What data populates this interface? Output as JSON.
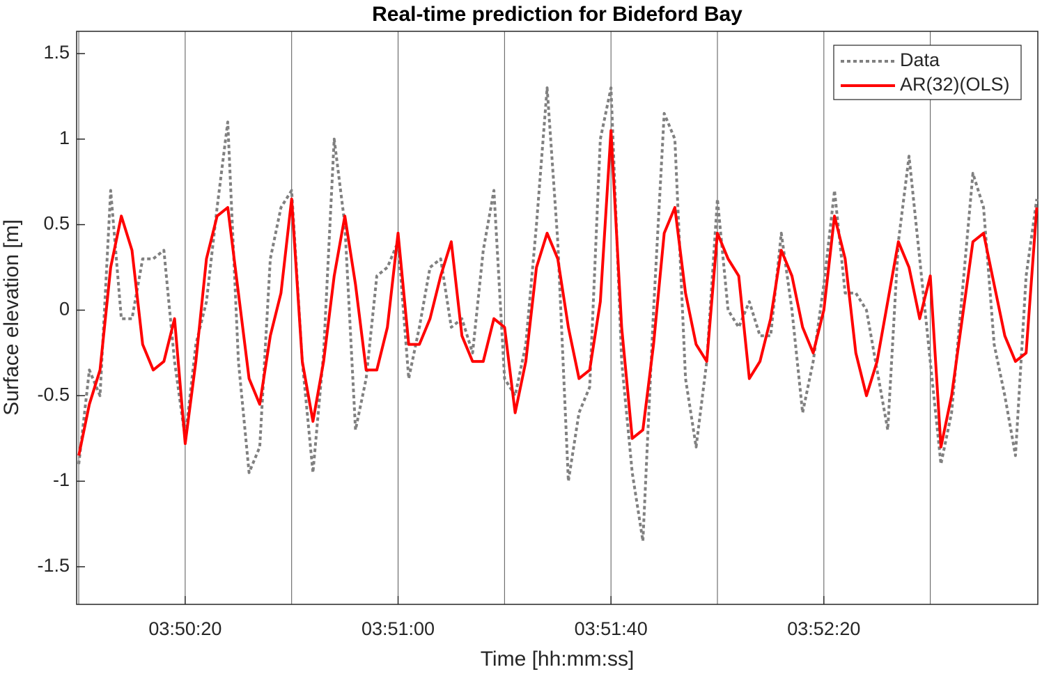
{
  "chart_data": {
    "type": "line",
    "title": "Real-time prediction for Bideford Bay",
    "x_label": "Time [hh:mm:ss]",
    "y_label": "Surface elevation [m]",
    "x": [
      13800,
      13802,
      13804,
      13806,
      13808,
      13810,
      13812,
      13814,
      13816,
      13818,
      13820,
      13822,
      13824,
      13826,
      13828,
      13830,
      13832,
      13834,
      13836,
      13838,
      13840,
      13842,
      13844,
      13846,
      13848,
      13850,
      13852,
      13854,
      13856,
      13858,
      13860,
      13862,
      13864,
      13866,
      13868,
      13870,
      13872,
      13874,
      13876,
      13878,
      13880,
      13882,
      13884,
      13886,
      13888,
      13890,
      13892,
      13894,
      13896,
      13898,
      13900,
      13902,
      13904,
      13906,
      13908,
      13910,
      13912,
      13914,
      13916,
      13918,
      13920,
      13922,
      13924,
      13926,
      13928,
      13930,
      13932,
      13934,
      13936,
      13938,
      13940,
      13942,
      13944,
      13946,
      13948,
      13950,
      13952,
      13954,
      13956,
      13958,
      13960,
      13962,
      13964,
      13966,
      13968,
      13970,
      13972,
      13974,
      13976,
      13978,
      13980
    ],
    "series": [
      {
        "name": "Data",
        "color": "#808080",
        "dashed": true,
        "values": [
          -0.9,
          -0.35,
          -0.5,
          0.7,
          -0.05,
          -0.05,
          0.3,
          0.3,
          0.35,
          -0.3,
          -0.75,
          -0.2,
          0.05,
          0.6,
          1.1,
          -0.3,
          -0.95,
          -0.8,
          0.3,
          0.6,
          0.7,
          -0.3,
          -0.95,
          -0.25,
          1.0,
          0.5,
          -0.7,
          -0.4,
          0.2,
          0.25,
          0.4,
          -0.4,
          -0.1,
          0.25,
          0.3,
          -0.1,
          -0.05,
          -0.25,
          0.35,
          0.7,
          -0.4,
          -0.5,
          -0.2,
          0.5,
          1.3,
          0.4,
          -1.0,
          -0.6,
          -0.45,
          1.0,
          1.3,
          -0.3,
          -0.95,
          -1.35,
          0.0,
          1.15,
          1.0,
          -0.4,
          -0.8,
          -0.3,
          0.65,
          0.0,
          -0.1,
          0.05,
          -0.15,
          -0.15,
          0.45,
          0.0,
          -0.6,
          -0.3,
          0.15,
          0.7,
          0.1,
          0.1,
          0.0,
          -0.35,
          -0.7,
          0.4,
          0.9,
          0.3,
          -0.3,
          -0.9,
          -0.6,
          0.1,
          0.8,
          0.6,
          -0.2,
          -0.5,
          -0.85,
          0.2,
          0.65
        ]
      },
      {
        "name": "AR(32)(OLS)",
        "color": "#ff0000",
        "dashed": false,
        "values": [
          -0.85,
          -0.55,
          -0.35,
          0.25,
          0.55,
          0.35,
          -0.2,
          -0.35,
          -0.3,
          -0.05,
          -0.78,
          -0.3,
          0.3,
          0.55,
          0.6,
          0.1,
          -0.4,
          -0.55,
          -0.15,
          0.1,
          0.65,
          -0.3,
          -0.65,
          -0.3,
          0.2,
          0.55,
          0.15,
          -0.35,
          -0.35,
          -0.1,
          0.45,
          -0.2,
          -0.2,
          -0.05,
          0.2,
          0.4,
          -0.15,
          -0.3,
          -0.3,
          -0.05,
          -0.1,
          -0.6,
          -0.3,
          0.25,
          0.45,
          0.3,
          -0.1,
          -0.4,
          -0.35,
          0.05,
          1.05,
          -0.1,
          -0.75,
          -0.7,
          -0.2,
          0.45,
          0.6,
          0.1,
          -0.2,
          -0.3,
          0.45,
          0.3,
          0.2,
          -0.4,
          -0.3,
          -0.05,
          0.35,
          0.2,
          -0.1,
          -0.25,
          0.0,
          0.55,
          0.3,
          -0.25,
          -0.5,
          -0.3,
          0.05,
          0.4,
          0.25,
          -0.05,
          0.2,
          -0.8,
          -0.5,
          -0.05,
          0.4,
          0.45,
          0.15,
          -0.15,
          -0.3,
          -0.25,
          0.6
        ]
      }
    ],
    "xlim": [
      13799.6,
      13980.2
    ],
    "xticks": [
      {
        "value": 13820,
        "label": "03:50:20"
      },
      {
        "value": 13860,
        "label": "03:51:00"
      },
      {
        "value": 13900,
        "label": "03:51:40"
      },
      {
        "value": 13940,
        "label": "03:52:20"
      }
    ],
    "xgrid": [
      13800,
      13820,
      13840,
      13860,
      13880,
      13900,
      13920,
      13940,
      13960
    ],
    "ylim": [
      -1.72,
      1.63
    ],
    "yticks": [
      -1.5,
      -1,
      -0.5,
      0,
      0.5,
      1,
      1.5
    ],
    "legend": "upper right"
  }
}
